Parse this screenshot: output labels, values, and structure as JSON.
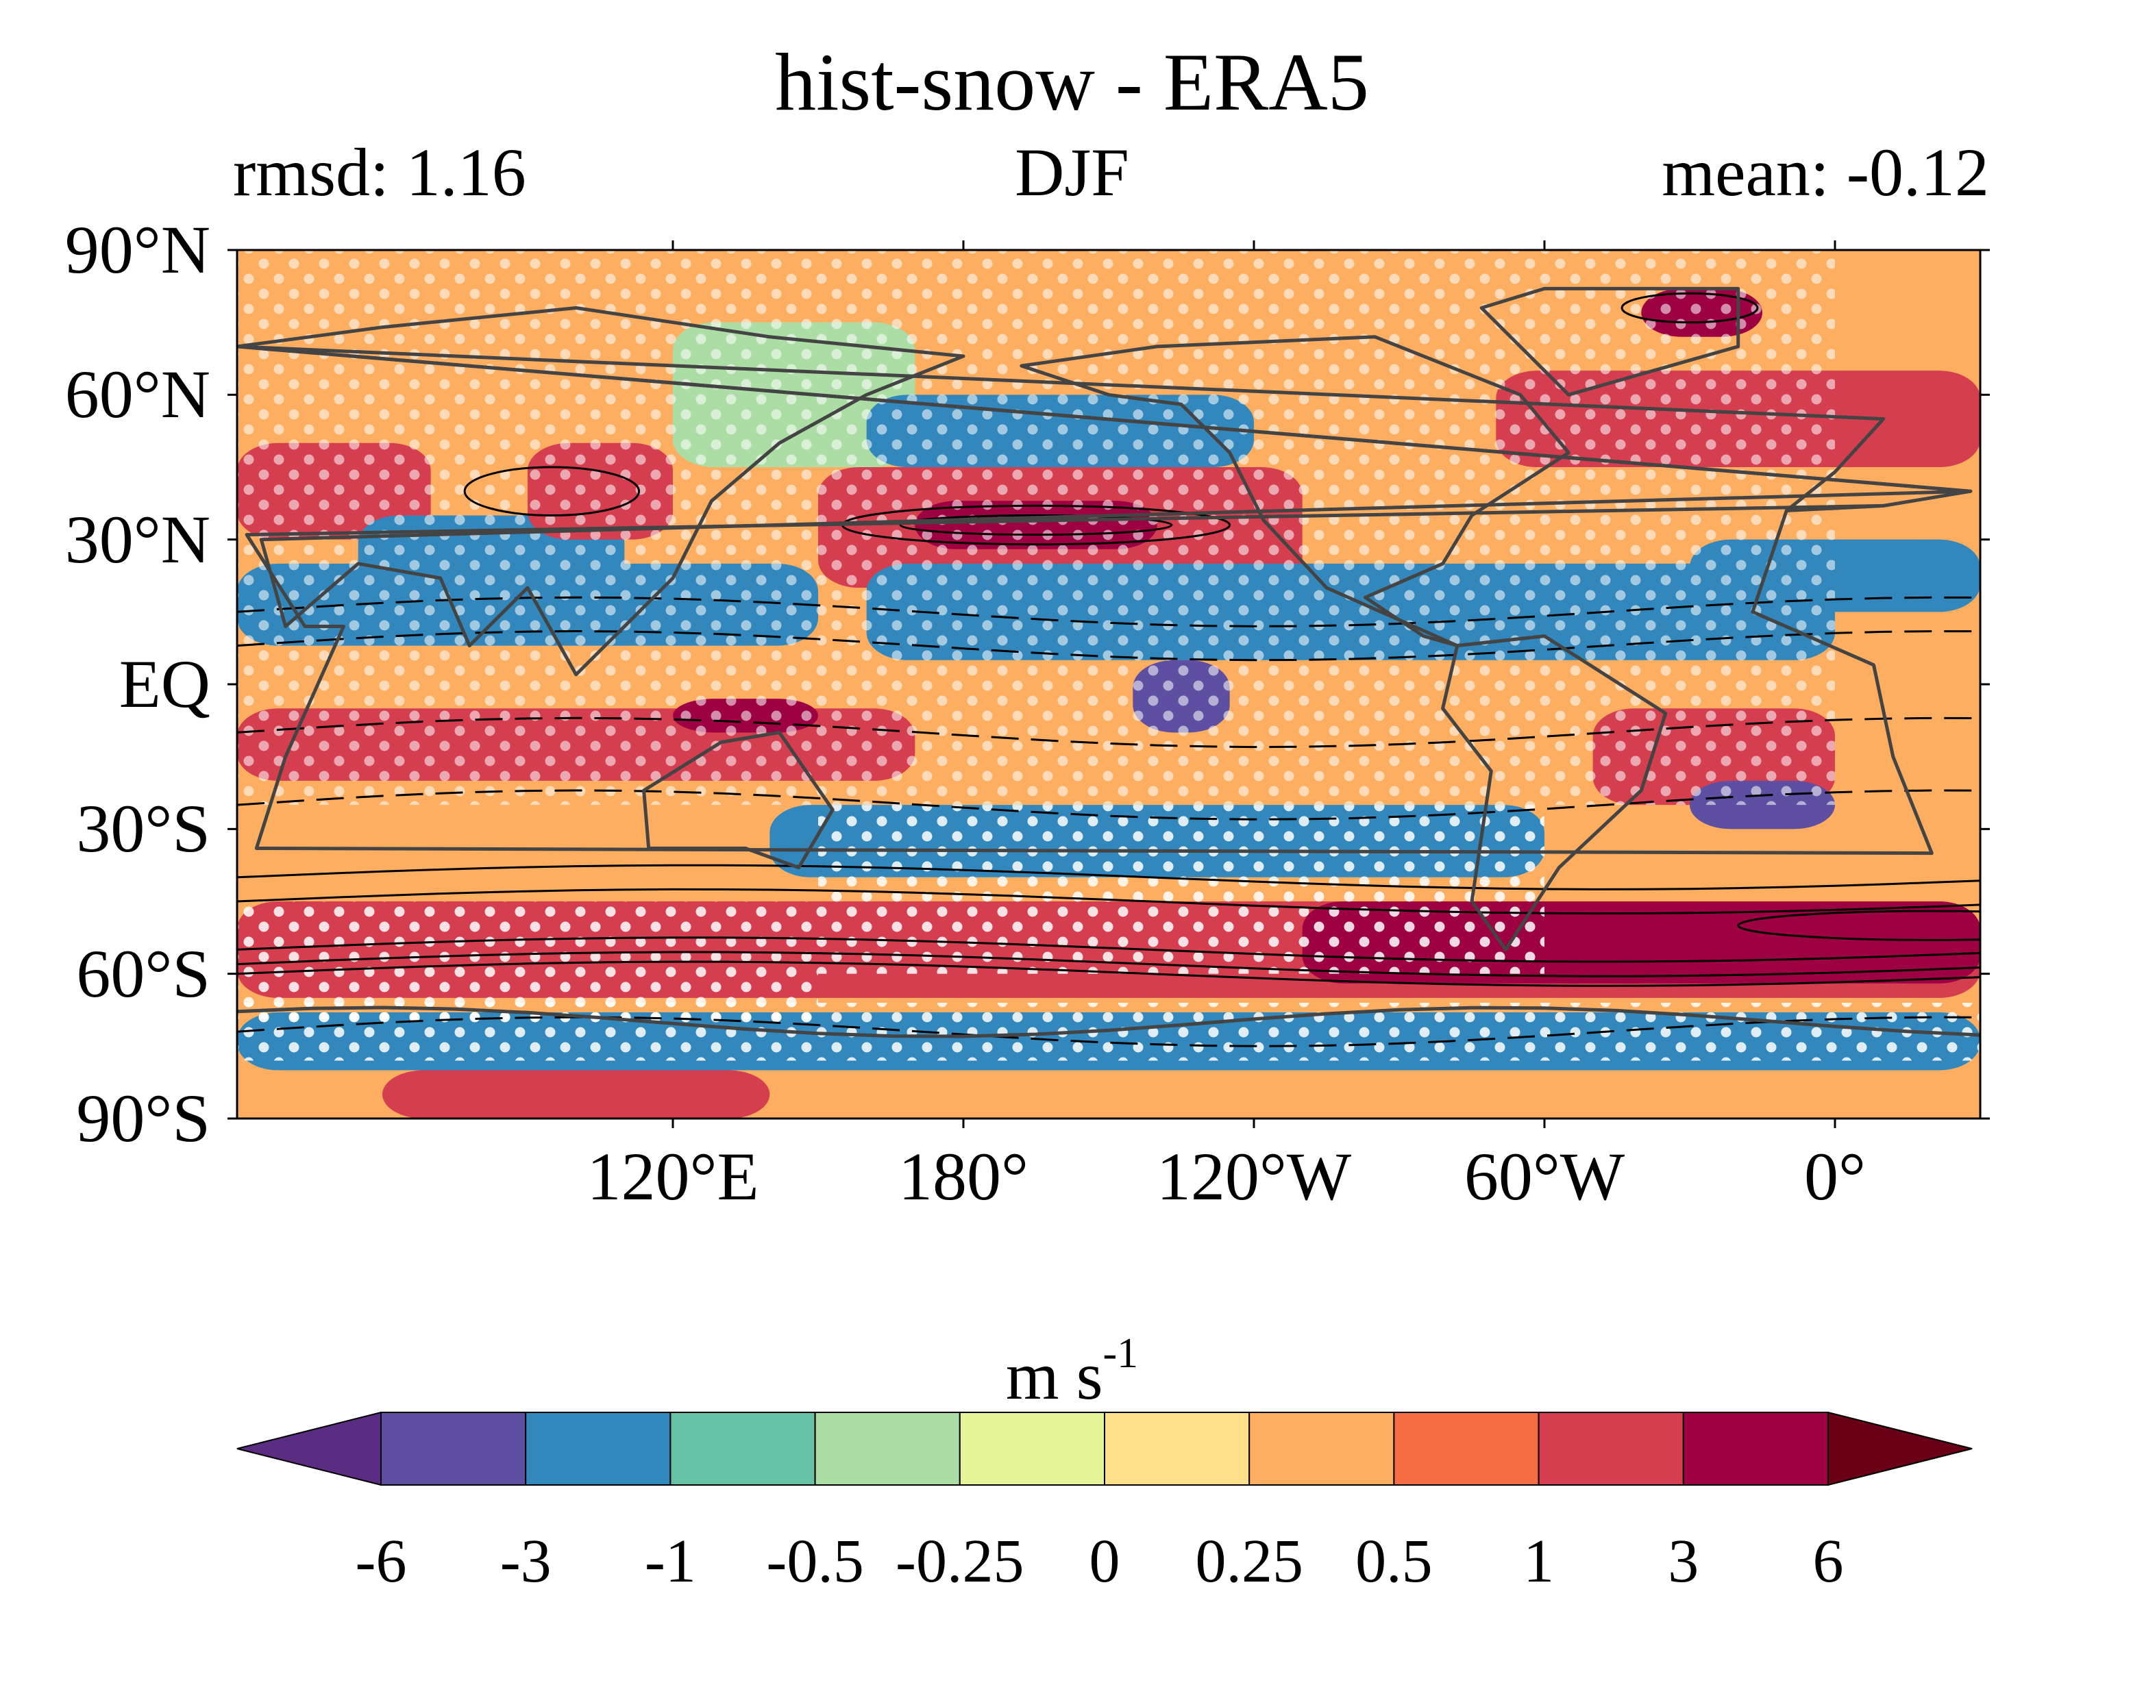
{
  "title": "hist-snow - ERA5",
  "stats": {
    "rmsd": "rmsd: 1.16",
    "season": "DJF",
    "mean": "mean: -0.12"
  },
  "colors": {
    "levels": [
      "#5a2d82",
      "#5e4fa2",
      "#3288bd",
      "#66c2a5",
      "#abdda4",
      "#e6f598",
      "#fee08b",
      "#fdae61",
      "#f46d43",
      "#d53e4f",
      "#9e0142",
      "#6a0016"
    ],
    "coastline": "#444444",
    "contour": "#000000",
    "stipple": "#ffffff"
  },
  "chart_data": {
    "type": "heatmap",
    "projection": "equirectangular",
    "lon_range": [
      30,
      390
    ],
    "lat_range": [
      -90,
      90
    ],
    "y_ticks": [
      {
        "lat": 90,
        "label": "90°N"
      },
      {
        "lat": 60,
        "label": "60°N"
      },
      {
        "lat": 30,
        "label": "30°N"
      },
      {
        "lat": 0,
        "label": "EQ"
      },
      {
        "lat": -30,
        "label": "30°S"
      },
      {
        "lat": -60,
        "label": "60°S"
      },
      {
        "lat": -90,
        "label": "90°S"
      }
    ],
    "x_ticks": [
      {
        "lon": 120,
        "label": "120°E"
      },
      {
        "lon": 180,
        "label": "180°"
      },
      {
        "lon": 240,
        "label": "120°W"
      },
      {
        "lon": 300,
        "label": "60°W"
      },
      {
        "lon": 360,
        "label": "0°"
      }
    ],
    "colorbar": {
      "units_main": "m s",
      "units_exp": "-1",
      "levels": [
        "-6",
        "-3",
        "-1",
        "-0.5",
        "-0.25",
        "0",
        "0.25",
        "0.5",
        "1",
        "3",
        "6"
      ],
      "extend": "both"
    },
    "regions": [
      {
        "lon": [
          30,
          390
        ],
        "lat": [
          -90,
          90
        ],
        "value": 0.4
      },
      {
        "lon": [
          30,
          70
        ],
        "lat": [
          30,
          50
        ],
        "value": 1.5
      },
      {
        "lon": [
          55,
          110
        ],
        "lat": [
          15,
          35
        ],
        "value": -1.5
      },
      {
        "lon": [
          90,
          120
        ],
        "lat": [
          30,
          50
        ],
        "value": 1.5
      },
      {
        "lon": [
          120,
          170
        ],
        "lat": [
          45,
          75
        ],
        "value": -0.4
      },
      {
        "lon": [
          160,
          240
        ],
        "lat": [
          45,
          60
        ],
        "value": -1.5
      },
      {
        "lon": [
          150,
          250
        ],
        "lat": [
          20,
          45
        ],
        "value": 1.5
      },
      {
        "lon": [
          170,
          220
        ],
        "lat": [
          28,
          38
        ],
        "value": 3.5
      },
      {
        "lon": [
          30,
          150
        ],
        "lat": [
          8,
          25
        ],
        "value": -1.5
      },
      {
        "lon": [
          160,
          360
        ],
        "lat": [
          5,
          25
        ],
        "value": -1.5
      },
      {
        "lon": [
          215,
          235
        ],
        "lat": [
          -10,
          5
        ],
        "value": -3.5
      },
      {
        "lon": [
          30,
          170
        ],
        "lat": [
          -20,
          -5
        ],
        "value": 1.5
      },
      {
        "lon": [
          120,
          150
        ],
        "lat": [
          -10,
          -3
        ],
        "value": 3.5
      },
      {
        "lon": [
          310,
          360
        ],
        "lat": [
          -25,
          -5
        ],
        "value": 1.5
      },
      {
        "lon": [
          140,
          300
        ],
        "lat": [
          -40,
          -25
        ],
        "value": -1.5
      },
      {
        "lon": [
          330,
          360
        ],
        "lat": [
          -30,
          -20
        ],
        "value": -3.5
      },
      {
        "lon": [
          30,
          390
        ],
        "lat": [
          -65,
          -45
        ],
        "value": 1.5
      },
      {
        "lon": [
          250,
          390
        ],
        "lat": [
          -62,
          -45
        ],
        "value": 3.5
      },
      {
        "lon": [
          30,
          390
        ],
        "lat": [
          -80,
          -68
        ],
        "value": -1.5
      },
      {
        "lon": [
          60,
          140
        ],
        "lat": [
          -90,
          -80
        ],
        "value": 1.5
      },
      {
        "lon": [
          320,
          345
        ],
        "lat": [
          72,
          82
        ],
        "value": 4.5
      },
      {
        "lon": [
          290,
          390
        ],
        "lat": [
          45,
          65
        ],
        "value": 1.5
      },
      {
        "lon": [
          330,
          390
        ],
        "lat": [
          15,
          30
        ],
        "value": -1.5
      }
    ],
    "stippling": "white dots mark significant differences"
  }
}
